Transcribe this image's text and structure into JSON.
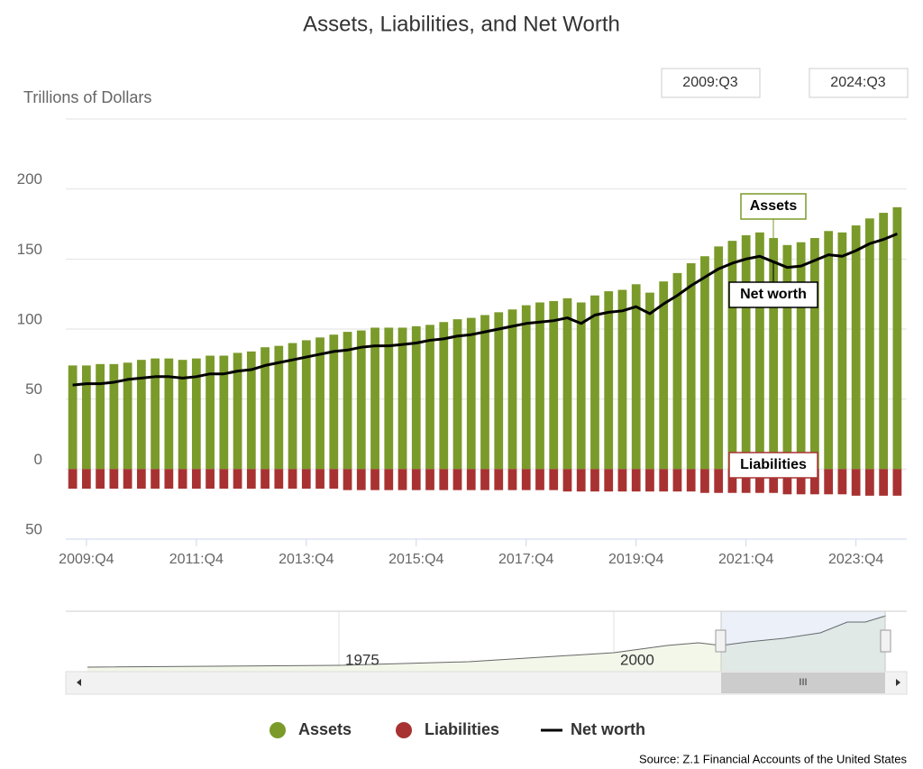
{
  "chart_data": {
    "type": "bar-line",
    "title": "Assets, Liabilities, and Net Worth",
    "y_axis_label": "Trillions of Dollars",
    "range_start": "2009:Q3",
    "range_end": "2024:Q3",
    "categories": [
      null,
      "2009:Q4",
      null,
      null,
      null,
      null,
      null,
      null,
      null,
      "2011:Q4",
      null,
      null,
      null,
      null,
      null,
      null,
      null,
      "2013:Q4",
      null,
      null,
      null,
      null,
      null,
      null,
      null,
      "2015:Q4",
      null,
      null,
      null,
      null,
      null,
      null,
      null,
      "2017:Q4",
      null,
      null,
      null,
      null,
      null,
      null,
      null,
      "2019:Q4",
      null,
      null,
      null,
      null,
      null,
      null,
      null,
      "2021:Q4",
      null,
      null,
      null,
      null,
      null,
      null,
      null,
      "2023:Q4",
      null,
      null,
      null
    ],
    "series": [
      {
        "name": "Assets",
        "kind": "bar",
        "color": "#7a9a2a",
        "values": [
          74,
          74,
          75,
          75,
          76,
          78,
          79,
          79,
          78,
          79,
          81,
          81,
          83,
          84,
          87,
          88,
          90,
          92,
          94,
          96,
          98,
          99,
          101,
          101,
          101,
          102,
          103,
          105,
          107,
          108,
          110,
          112,
          114,
          117,
          119,
          120,
          122,
          119,
          124,
          127,
          128,
          132,
          126,
          134,
          140,
          147,
          152,
          159,
          163,
          167,
          169,
          165,
          160,
          162,
          165,
          170,
          169,
          174,
          179,
          183,
          187
        ]
      },
      {
        "name": "Liabilities",
        "kind": "bar",
        "color": "#a83232",
        "values": [
          -14,
          -14,
          -14,
          -14,
          -14,
          -14,
          -14,
          -14,
          -14,
          -14,
          -14,
          -14,
          -14,
          -14,
          -14,
          -14,
          -14,
          -14,
          -14,
          -14,
          -15,
          -15,
          -15,
          -15,
          -15,
          -15,
          -15,
          -15,
          -15,
          -15,
          -15,
          -15,
          -15,
          -15,
          -15,
          -15,
          -16,
          -16,
          -16,
          -16,
          -16,
          -16,
          -16,
          -16,
          -16,
          -16,
          -17,
          -17,
          -17,
          -17,
          -17,
          -17,
          -18,
          -18,
          -18,
          -18,
          -18,
          -19,
          -19,
          -19,
          -19
        ]
      },
      {
        "name": "Net worth",
        "kind": "line",
        "color": "#000000",
        "values": [
          60,
          61,
          61,
          62,
          64,
          65,
          66,
          66,
          65,
          66,
          68,
          68,
          70,
          71,
          74,
          76,
          78,
          80,
          82,
          84,
          85,
          87,
          88,
          88,
          89,
          90,
          92,
          93,
          95,
          96,
          98,
          100,
          102,
          104,
          105,
          106,
          108,
          104,
          110,
          112,
          113,
          116,
          111,
          118,
          124,
          131,
          137,
          143,
          147,
          150,
          152,
          148,
          144,
          145,
          149,
          153,
          152,
          156,
          161,
          164,
          168
        ]
      }
    ],
    "ylim": [
      -50,
      250
    ],
    "yticks": [
      {
        "value": -50,
        "label": "50"
      },
      0,
      50,
      100,
      150,
      200
    ],
    "grid": true,
    "navigator_labels": [
      "1975",
      "2000"
    ],
    "source": "Source: Z.1 Financial Accounts of the United States"
  }
}
